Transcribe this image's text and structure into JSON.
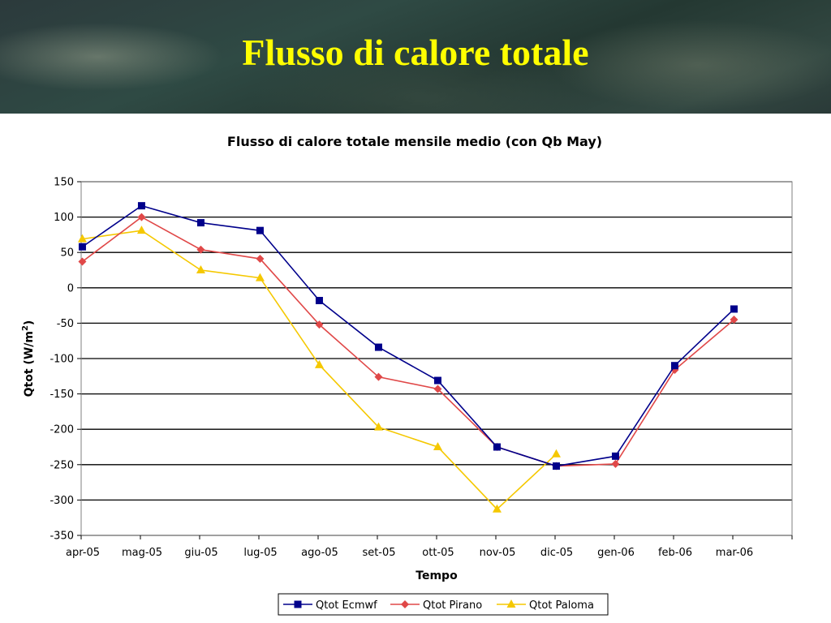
{
  "banner": {
    "title": "Flusso di calore totale"
  },
  "colors": {
    "title_text": "#ffff00",
    "series_ecmwf": "#00008b",
    "series_pirano": "#e04848",
    "series_paloma": "#f5c800"
  },
  "chart_data": {
    "type": "line",
    "title": "Flusso di calore totale mensile medio (con Qb May)",
    "xlabel": "Tempo",
    "ylabel": "Qtot (W/m2)",
    "ylim": [
      -350,
      150
    ],
    "yticks": [
      150,
      100,
      50,
      0,
      -50,
      -100,
      -150,
      -200,
      -250,
      -300,
      -350
    ],
    "grid": true,
    "legend_position": "bottom",
    "categories": [
      "apr-05",
      "mag-05",
      "giu-05",
      "lug-05",
      "ago-05",
      "set-05",
      "ott-05",
      "nov-05",
      "dic-05",
      "gen-06",
      "feb-06",
      "mar-06"
    ],
    "series": [
      {
        "name": "Qtot Ecmwf",
        "marker": "square",
        "values": [
          58,
          116,
          92,
          81,
          -18,
          -84,
          -131,
          -225,
          -252,
          -238,
          -110,
          -30
        ]
      },
      {
        "name": "Qtot Pirano",
        "marker": "diamond",
        "values": [
          37,
          100,
          54,
          41,
          -52,
          -126,
          -143,
          -225,
          -252,
          -249,
          -116,
          -45
        ]
      },
      {
        "name": "Qtot Paloma",
        "marker": "triangle",
        "values": [
          69,
          81,
          25,
          14,
          -109,
          -197,
          -225,
          -313,
          -235,
          null,
          null,
          null
        ]
      }
    ]
  }
}
